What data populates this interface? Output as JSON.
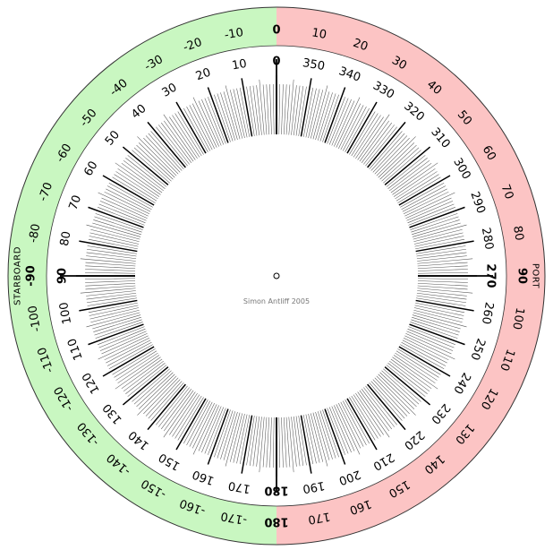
{
  "dial": {
    "credit": "Simon Antliff 2005",
    "starboard_label": "STARBOARD",
    "port_label": "PORT",
    "colors": {
      "starboard": "#c9f7c1",
      "port": "#fcc4c4",
      "ring_stroke": "#333333",
      "tick_major": "#000000",
      "tick_minor": "#555555"
    },
    "inner_labels": [
      "0",
      "10",
      "20",
      "30",
      "40",
      "50",
      "60",
      "70",
      "80",
      "90",
      "100",
      "110",
      "120",
      "130",
      "140",
      "150",
      "160",
      "170",
      "180",
      "190",
      "200",
      "210",
      "220",
      "230",
      "240",
      "250",
      "260",
      "270",
      "280",
      "290",
      "300",
      "310",
      "320",
      "330",
      "340",
      "350"
    ],
    "relative_starboard": [
      "0",
      "-10",
      "-20",
      "-30",
      "-40",
      "-50",
      "-60",
      "-70",
      "-80",
      "-90",
      "-100",
      "-110",
      "-120",
      "-130",
      "-140",
      "-150",
      "-160",
      "-170",
      "180"
    ],
    "relative_port": [
      "10",
      "20",
      "30",
      "40",
      "50",
      "60",
      "70",
      "80",
      "90",
      "100",
      "110",
      "120",
      "130",
      "140",
      "150",
      "160",
      "170"
    ]
  }
}
